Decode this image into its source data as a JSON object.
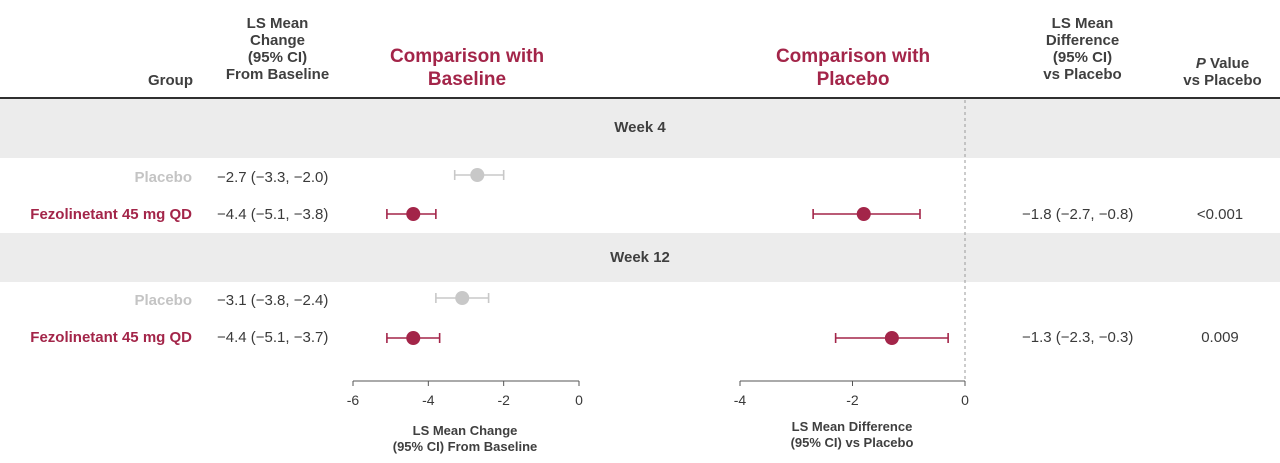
{
  "colors": {
    "fezolinetant": "#a32549",
    "placebo": "#c8c8c8",
    "placebo_text": "#c4c4c4",
    "band": "#ececec"
  },
  "header": {
    "group": "Group",
    "ls_mean_change": "LS Mean\nChange\n(95% CI)\nFrom Baseline",
    "comparison_baseline": "Comparison with\nBaseline",
    "comparison_placebo": "Comparison with\nPlacebo",
    "ls_mean_difference": "LS Mean\nDifference\n(95% CI)\nvs Placebo",
    "p_value_italic": "P",
    "p_value_rest": " Value\nvs Placebo"
  },
  "sections": [
    {
      "label": "Week 4",
      "rows": [
        {
          "group": "Placebo",
          "change_text": "−2.7 (−3.3, −2.0)",
          "difference_text": "",
          "p_value": ""
        },
        {
          "group": "Fezolinetant 45 mg QD",
          "change_text": "−4.4 (−5.1, −3.8)",
          "difference_text": "−1.8 (−2.7, −0.8)",
          "p_value": "<0.001"
        }
      ]
    },
    {
      "label": "Week 12",
      "rows": [
        {
          "group": "Placebo",
          "change_text": "−3.1 (−3.8, −2.4)",
          "difference_text": "",
          "p_value": ""
        },
        {
          "group": "Fezolinetant 45 mg QD",
          "change_text": "−4.4 (−5.1, −3.7)",
          "difference_text": "−1.3 (−2.3, −0.3)",
          "p_value": "0.009"
        }
      ]
    }
  ],
  "chart_data": [
    {
      "type": "forest",
      "xlabel": "LS Mean Change\n(95% CI) From Baseline",
      "xlim": [
        -6,
        0
      ],
      "xticks": [
        -6,
        -4,
        -2,
        0
      ],
      "series": [
        {
          "name": "Placebo",
          "points": [
            {
              "category": "Week 4",
              "estimate": -2.7,
              "lower": -3.3,
              "upper": -2.0
            },
            {
              "category": "Week 12",
              "estimate": -3.1,
              "lower": -3.8,
              "upper": -2.4
            }
          ]
        },
        {
          "name": "Fezolinetant 45 mg QD",
          "points": [
            {
              "category": "Week 4",
              "estimate": -4.4,
              "lower": -5.1,
              "upper": -3.8
            },
            {
              "category": "Week 12",
              "estimate": -4.4,
              "lower": -5.1,
              "upper": -3.7
            }
          ]
        }
      ]
    },
    {
      "type": "forest",
      "xlabel": "LS Mean Difference\n(95% CI) vs Placebo",
      "xlim": [
        -4,
        0
      ],
      "xticks": [
        -4,
        -2,
        0
      ],
      "reference_line": 0,
      "series": [
        {
          "name": "Fezolinetant 45 mg QD",
          "points": [
            {
              "category": "Week 4",
              "estimate": -1.8,
              "lower": -2.7,
              "upper": -0.8
            },
            {
              "category": "Week 12",
              "estimate": -1.3,
              "lower": -2.3,
              "upper": -0.3
            }
          ]
        }
      ]
    }
  ]
}
